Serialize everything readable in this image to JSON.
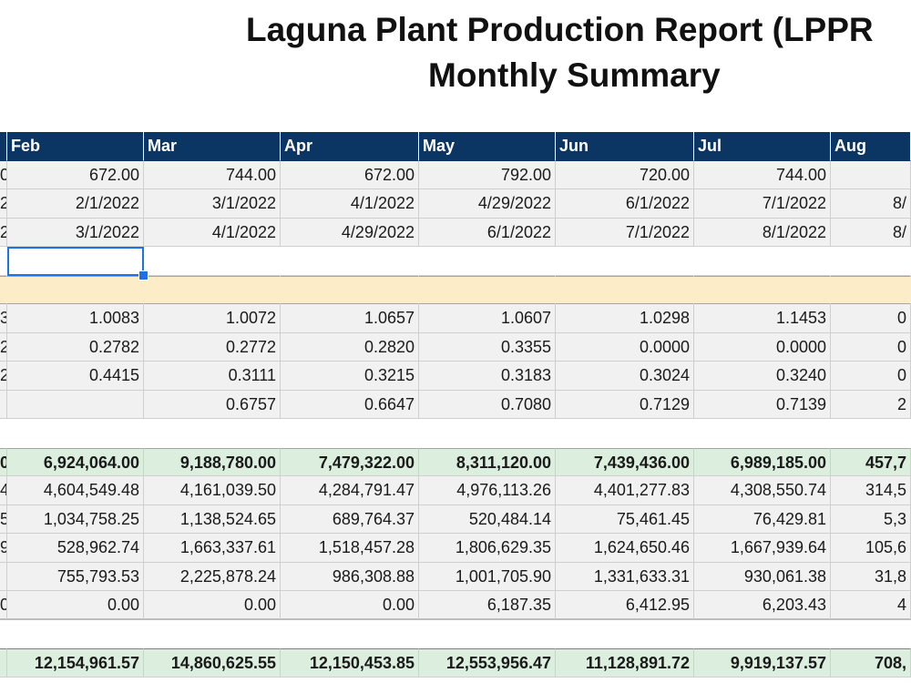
{
  "report": {
    "title": "Laguna Plant Production Report (LPPR",
    "subtitle": "Monthly Summary"
  },
  "colors": {
    "header": "#0b3563",
    "band": "#fdecc8",
    "green": "#dceede",
    "selection": "#1a73e8"
  },
  "headers": [
    "",
    "Feb",
    "Mar",
    "Apr",
    "May",
    "Jun",
    "Jul",
    "Aug"
  ],
  "rows": [
    {
      "style": "gray",
      "cells": [
        "0",
        "672.00",
        "744.00",
        "672.00",
        "792.00",
        "720.00",
        "744.00",
        ""
      ]
    },
    {
      "style": "gray",
      "cells": [
        "2",
        "2/1/2022",
        "3/1/2022",
        "4/1/2022",
        "4/29/2022",
        "6/1/2022",
        "7/1/2022",
        "8/"
      ]
    },
    {
      "style": "gray",
      "cells": [
        "2",
        "3/1/2022",
        "4/1/2022",
        "4/29/2022",
        "6/1/2022",
        "7/1/2022",
        "8/1/2022",
        "8/"
      ]
    },
    {
      "style": "white",
      "cells": [
        "",
        "",
        "",
        "",
        "",
        "",
        "",
        ""
      ]
    },
    {
      "style": "band",
      "cells": [
        "",
        "",
        "",
        "",
        "",
        "",
        "",
        ""
      ]
    },
    {
      "style": "gray",
      "cells": [
        "3",
        "1.0083",
        "1.0072",
        "1.0657",
        "1.0607",
        "1.0298",
        "1.1453",
        "0"
      ]
    },
    {
      "style": "gray",
      "cells": [
        "2",
        "0.2782",
        "0.2772",
        "0.2820",
        "0.3355",
        "0.0000",
        "0.0000",
        "0"
      ]
    },
    {
      "style": "gray",
      "cells": [
        "2",
        "0.4415",
        "0.3111",
        "0.3215",
        "0.3183",
        "0.3024",
        "0.3240",
        "0"
      ]
    },
    {
      "style": "gray",
      "cells": [
        "",
        "",
        "0.6757",
        "0.6647",
        "0.7080",
        "0.7129",
        "0.7139",
        "2"
      ]
    },
    {
      "style": "blank",
      "cells": [
        "",
        "",
        "",
        "",
        "",
        "",
        "",
        ""
      ]
    },
    {
      "style": "greenrow",
      "cells": [
        "0",
        "6,924,064.00",
        "9,188,780.00",
        "7,479,322.00",
        "8,311,120.00",
        "7,439,436.00",
        "6,989,185.00",
        "457,7"
      ]
    },
    {
      "style": "gray",
      "cells": [
        "4",
        "4,604,549.48",
        "4,161,039.50",
        "4,284,791.47",
        "4,976,113.26",
        "4,401,277.83",
        "4,308,550.74",
        "314,5"
      ]
    },
    {
      "style": "gray",
      "cells": [
        "5",
        "1,034,758.25",
        "1,138,524.65",
        "689,764.37",
        "520,484.14",
        "75,461.45",
        "76,429.81",
        "5,3"
      ]
    },
    {
      "style": "gray",
      "cells": [
        "9",
        "528,962.74",
        "1,663,337.61",
        "1,518,457.28",
        "1,806,629.35",
        "1,624,650.46",
        "1,667,939.64",
        "105,6"
      ]
    },
    {
      "style": "gray",
      "cells": [
        "",
        "755,793.53",
        "2,225,878.24",
        "986,308.88",
        "1,001,705.90",
        "1,331,633.31",
        "930,061.38",
        "31,8"
      ]
    },
    {
      "style": "gray lastgray",
      "cells": [
        "0",
        "0.00",
        "0.00",
        "0.00",
        "6,187.35",
        "6,412.95",
        "6,203.43",
        "4"
      ]
    },
    {
      "style": "blank",
      "cells": [
        "",
        "",
        "",
        "",
        "",
        "",
        "",
        ""
      ]
    },
    {
      "style": "totalrow",
      "cells": [
        "",
        "12,154,961.57",
        "14,860,625.55",
        "12,150,453.85",
        "12,553,956.47",
        "11,128,891.72",
        "9,919,137.57",
        "708,"
      ]
    }
  ]
}
